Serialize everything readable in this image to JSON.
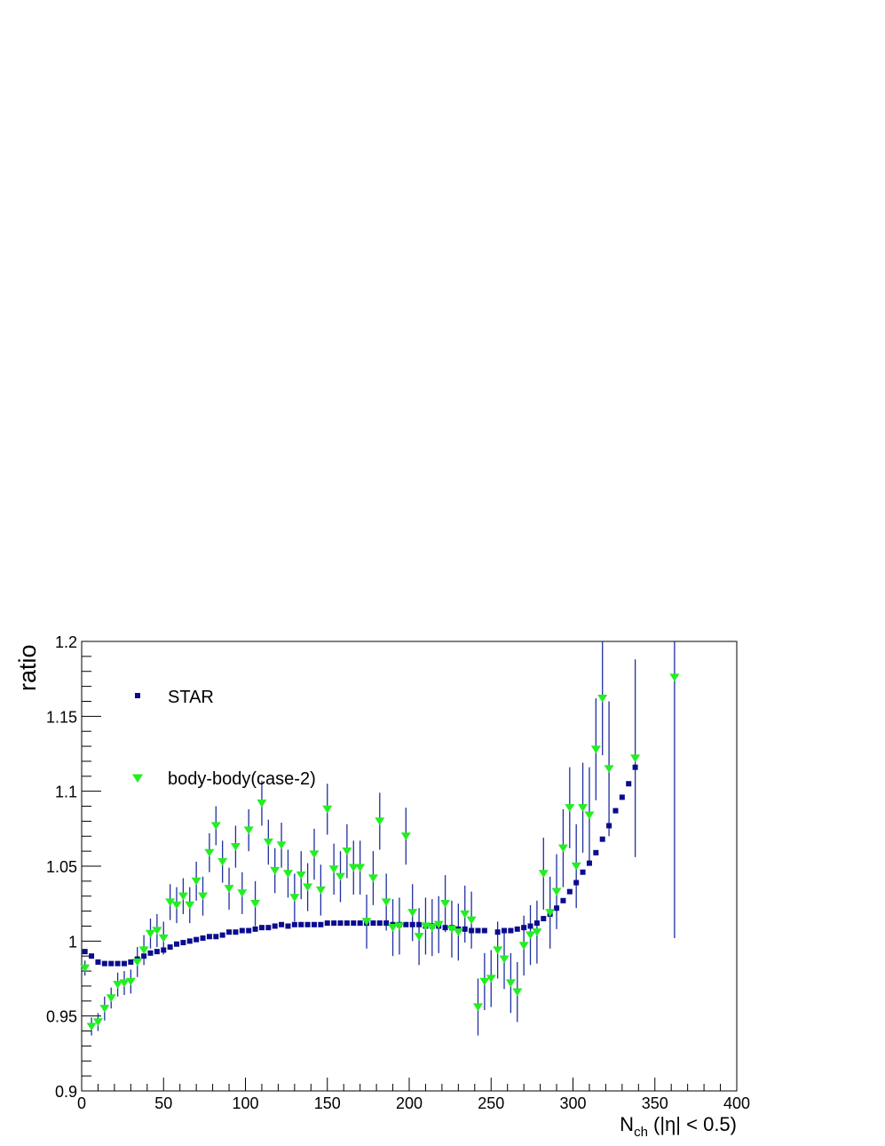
{
  "chart_data": {
    "type": "scatter",
    "title": "",
    "xlabel": "N",
    "xlabel_sub": "ch",
    "xlabel_tail": " (|η| < 0.5)",
    "ylabel": "ratio",
    "xlim": [
      0,
      400
    ],
    "ylim": [
      0.9,
      1.2
    ],
    "x_ticks": [
      "0",
      "50",
      "100",
      "150",
      "200",
      "250",
      "300",
      "350",
      "400"
    ],
    "y_ticks": [
      "0.9",
      "0.95",
      "1",
      "1.05",
      "1.1",
      "1.15",
      "1.2"
    ],
    "grid": false,
    "legend_position": "top-left",
    "colors": {
      "star": "#0b0b8f",
      "body": "#22ee22",
      "errorbar": "#1f2f9f"
    },
    "series": [
      {
        "name": "STAR",
        "marker": "square",
        "points": [
          [
            2,
            0.993
          ],
          [
            6,
            0.99
          ],
          [
            10,
            0.986
          ],
          [
            14,
            0.985
          ],
          [
            18,
            0.985
          ],
          [
            22,
            0.985
          ],
          [
            26,
            0.985
          ],
          [
            30,
            0.986
          ],
          [
            34,
            0.988
          ],
          [
            38,
            0.99
          ],
          [
            42,
            0.992
          ],
          [
            46,
            0.993
          ],
          [
            50,
            0.994
          ],
          [
            54,
            0.996
          ],
          [
            58,
            0.998
          ],
          [
            62,
            0.999
          ],
          [
            66,
            1.0
          ],
          [
            70,
            1.001
          ],
          [
            74,
            1.002
          ],
          [
            78,
            1.003
          ],
          [
            82,
            1.003
          ],
          [
            86,
            1.004
          ],
          [
            90,
            1.006
          ],
          [
            94,
            1.006
          ],
          [
            98,
            1.007
          ],
          [
            102,
            1.007
          ],
          [
            106,
            1.008
          ],
          [
            110,
            1.009
          ],
          [
            114,
            1.009
          ],
          [
            118,
            1.01
          ],
          [
            122,
            1.011
          ],
          [
            126,
            1.01
          ],
          [
            130,
            1.011
          ],
          [
            134,
            1.011
          ],
          [
            138,
            1.011
          ],
          [
            142,
            1.011
          ],
          [
            146,
            1.011
          ],
          [
            150,
            1.012
          ],
          [
            154,
            1.012
          ],
          [
            158,
            1.012
          ],
          [
            162,
            1.012
          ],
          [
            166,
            1.012
          ],
          [
            170,
            1.012
          ],
          [
            174,
            1.012
          ],
          [
            178,
            1.012
          ],
          [
            182,
            1.012
          ],
          [
            186,
            1.012
          ],
          [
            190,
            1.011
          ],
          [
            194,
            1.011
          ],
          [
            198,
            1.011
          ],
          [
            202,
            1.011
          ],
          [
            206,
            1.011
          ],
          [
            210,
            1.01
          ],
          [
            214,
            1.01
          ],
          [
            218,
            1.01
          ],
          [
            222,
            1.009
          ],
          [
            226,
            1.009
          ],
          [
            230,
            1.008
          ],
          [
            234,
            1.008
          ],
          [
            238,
            1.007
          ],
          [
            242,
            1.007
          ],
          [
            246,
            1.007
          ],
          [
            254,
            1.006
          ],
          [
            258,
            1.007
          ],
          [
            262,
            1.007
          ],
          [
            266,
            1.008
          ],
          [
            270,
            1.009
          ],
          [
            274,
            1.01
          ],
          [
            278,
            1.012
          ],
          [
            282,
            1.015
          ],
          [
            286,
            1.018
          ],
          [
            290,
            1.022
          ],
          [
            294,
            1.027
          ],
          [
            298,
            1.033
          ],
          [
            302,
            1.039
          ],
          [
            306,
            1.046
          ],
          [
            310,
            1.052
          ],
          [
            314,
            1.059
          ],
          [
            318,
            1.068
          ],
          [
            322,
            1.077
          ],
          [
            326,
            1.087
          ],
          [
            330,
            1.096
          ],
          [
            334,
            1.105
          ],
          [
            338,
            1.116
          ]
        ]
      },
      {
        "name": "body-body(case-2)",
        "marker": "triangle-down",
        "points": [
          [
            2,
            0.982,
            0.005
          ],
          [
            6,
            0.943,
            0.006
          ],
          [
            10,
            0.946,
            0.006
          ],
          [
            14,
            0.955,
            0.008
          ],
          [
            18,
            0.962,
            0.007
          ],
          [
            22,
            0.971,
            0.008
          ],
          [
            26,
            0.972,
            0.008
          ],
          [
            30,
            0.973,
            0.008
          ],
          [
            34,
            0.986,
            0.01
          ],
          [
            38,
            0.994,
            0.01
          ],
          [
            42,
            1.005,
            0.01
          ],
          [
            46,
            1.007,
            0.011
          ],
          [
            50,
            1.002,
            0.011
          ],
          [
            54,
            1.026,
            0.012
          ],
          [
            58,
            1.024,
            0.012
          ],
          [
            62,
            1.03,
            0.012
          ],
          [
            66,
            1.024,
            0.012
          ],
          [
            70,
            1.04,
            0.013
          ],
          [
            74,
            1.03,
            0.013
          ],
          [
            78,
            1.059,
            0.013
          ],
          [
            82,
            1.077,
            0.013
          ],
          [
            86,
            1.053,
            0.014
          ],
          [
            90,
            1.035,
            0.014
          ],
          [
            94,
            1.063,
            0.014
          ],
          [
            98,
            1.032,
            0.014
          ],
          [
            102,
            1.074,
            0.014
          ],
          [
            106,
            1.025,
            0.015
          ],
          [
            110,
            1.092,
            0.015
          ],
          [
            114,
            1.066,
            0.015
          ],
          [
            118,
            1.047,
            0.015
          ],
          [
            122,
            1.064,
            0.015
          ],
          [
            126,
            1.045,
            0.016
          ],
          [
            130,
            1.029,
            0.016
          ],
          [
            134,
            1.044,
            0.016
          ],
          [
            138,
            1.036,
            0.016
          ],
          [
            142,
            1.058,
            0.017
          ],
          [
            146,
            1.034,
            0.017
          ],
          [
            150,
            1.088,
            0.017
          ],
          [
            154,
            1.048,
            0.017
          ],
          [
            158,
            1.043,
            0.017
          ],
          [
            162,
            1.06,
            0.018
          ],
          [
            166,
            1.049,
            0.018
          ],
          [
            170,
            1.049,
            0.018
          ],
          [
            174,
            1.013,
            0.018
          ],
          [
            178,
            1.042,
            0.018
          ],
          [
            182,
            1.08,
            0.019
          ],
          [
            186,
            1.026,
            0.019
          ],
          [
            190,
            1.009,
            0.019
          ],
          [
            194,
            1.01,
            0.019
          ],
          [
            198,
            1.07,
            0.019
          ],
          [
            202,
            1.019,
            0.019
          ],
          [
            206,
            1.003,
            0.019
          ],
          [
            210,
            1.01,
            0.019
          ],
          [
            214,
            1.009,
            0.019
          ],
          [
            218,
            1.011,
            0.019
          ],
          [
            222,
            1.025,
            0.019
          ],
          [
            226,
            1.008,
            0.019
          ],
          [
            230,
            1.006,
            0.019
          ],
          [
            234,
            1.018,
            0.019
          ],
          [
            238,
            1.014,
            0.019
          ],
          [
            242,
            0.956,
            0.019
          ],
          [
            246,
            0.973,
            0.019
          ],
          [
            250,
            0.975,
            0.019
          ],
          [
            254,
            0.994,
            0.019
          ],
          [
            258,
            0.988,
            0.02
          ],
          [
            262,
            0.972,
            0.02
          ],
          [
            266,
            0.966,
            0.02
          ],
          [
            270,
            0.997,
            0.02
          ],
          [
            274,
            1.004,
            0.02
          ],
          [
            278,
            1.006,
            0.021
          ],
          [
            282,
            1.045,
            0.024
          ],
          [
            286,
            1.019,
            0.024
          ],
          [
            290,
            1.033,
            0.025
          ],
          [
            294,
            1.062,
            0.026
          ],
          [
            298,
            1.089,
            0.027
          ],
          [
            302,
            1.05,
            0.028
          ],
          [
            306,
            1.089,
            0.03
          ],
          [
            310,
            1.084,
            0.032
          ],
          [
            314,
            1.128,
            0.034
          ],
          [
            318,
            1.162,
            0.038
          ],
          [
            322,
            1.115,
            0.045
          ],
          [
            338,
            1.122,
            0.066
          ],
          [
            362,
            1.176,
            0.174
          ]
        ]
      }
    ]
  }
}
